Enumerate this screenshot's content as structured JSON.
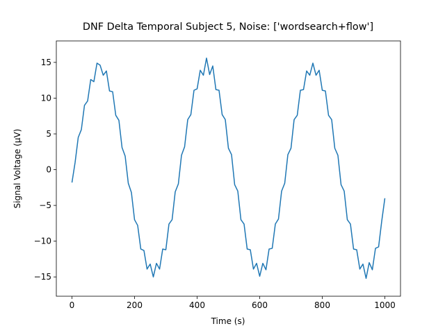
{
  "chart_data": {
    "type": "line",
    "title": "DNF Delta Temporal Subject 5, Noise: ['wordsearch+flow']",
    "xlabel": "Time (s)",
    "ylabel": "Signal Voltage (μV)",
    "x": [
      0,
      10,
      20,
      30,
      40,
      50,
      60,
      70,
      80,
      90,
      100,
      110,
      120,
      130,
      140,
      150,
      160,
      170,
      180,
      190,
      200,
      210,
      220,
      230,
      240,
      250,
      260,
      270,
      280,
      290,
      300,
      310,
      320,
      330,
      340,
      350,
      360,
      370,
      380,
      390,
      400,
      410,
      420,
      430,
      440,
      450,
      460,
      470,
      480,
      490,
      500,
      510,
      520,
      530,
      540,
      550,
      560,
      570,
      580,
      590,
      600,
      610,
      620,
      630,
      640,
      650,
      660,
      670,
      680,
      690,
      700,
      710,
      720,
      730,
      740,
      750,
      760,
      770,
      780,
      790,
      800,
      810,
      820,
      830,
      840,
      850,
      860,
      870,
      880,
      890,
      900,
      910,
      920,
      930,
      940,
      950,
      960,
      970,
      980,
      990,
      1000
    ],
    "series": [
      {
        "color": "#1f77b4",
        "values": [
          -1.8,
          1.0,
          4.5,
          5.6,
          9.0,
          9.6,
          12.6,
          12.3,
          14.9,
          14.6,
          13.2,
          13.8,
          11.0,
          10.9,
          7.6,
          6.9,
          3.1,
          1.9,
          -1.9,
          -3.2,
          -7.0,
          -7.8,
          -11.1,
          -11.3,
          -13.9,
          -13.2,
          -15.0,
          -13.1,
          -13.9,
          -11.1,
          -11.2,
          -7.6,
          -7.0,
          -3.1,
          -2.0,
          2.0,
          3.2,
          7.0,
          7.7,
          11.1,
          11.3,
          13.9,
          13.2,
          15.6,
          13.3,
          14.5,
          11.2,
          11.1,
          7.7,
          7.0,
          3.0,
          2.1,
          -2.1,
          -3.0,
          -7.0,
          -7.6,
          -11.1,
          -11.2,
          -13.9,
          -13.1,
          -14.9,
          -13.1,
          -14.0,
          -11.1,
          -11.0,
          -7.6,
          -6.9,
          -3.0,
          -1.9,
          2.1,
          3.0,
          7.0,
          7.6,
          11.1,
          11.2,
          13.8,
          13.2,
          14.9,
          13.2,
          13.9,
          11.1,
          11.0,
          7.6,
          7.0,
          3.0,
          2.0,
          -2.1,
          -3.0,
          -7.0,
          -7.6,
          -11.1,
          -11.2,
          -13.9,
          -13.2,
          -15.2,
          -13.0,
          -14.0,
          -11.0,
          -10.8,
          -7.2,
          -4.0
        ]
      }
    ],
    "xlim": [
      -50,
      1050
    ],
    "ylim": [
      -17.7,
      18.0
    ],
    "xticks": [
      0,
      200,
      400,
      600,
      800,
      1000
    ],
    "yticks": [
      {
        "value": -15,
        "label": "−15"
      },
      {
        "value": -10,
        "label": "−10"
      },
      {
        "value": -5,
        "label": "−5"
      },
      0,
      5,
      10,
      15
    ]
  }
}
